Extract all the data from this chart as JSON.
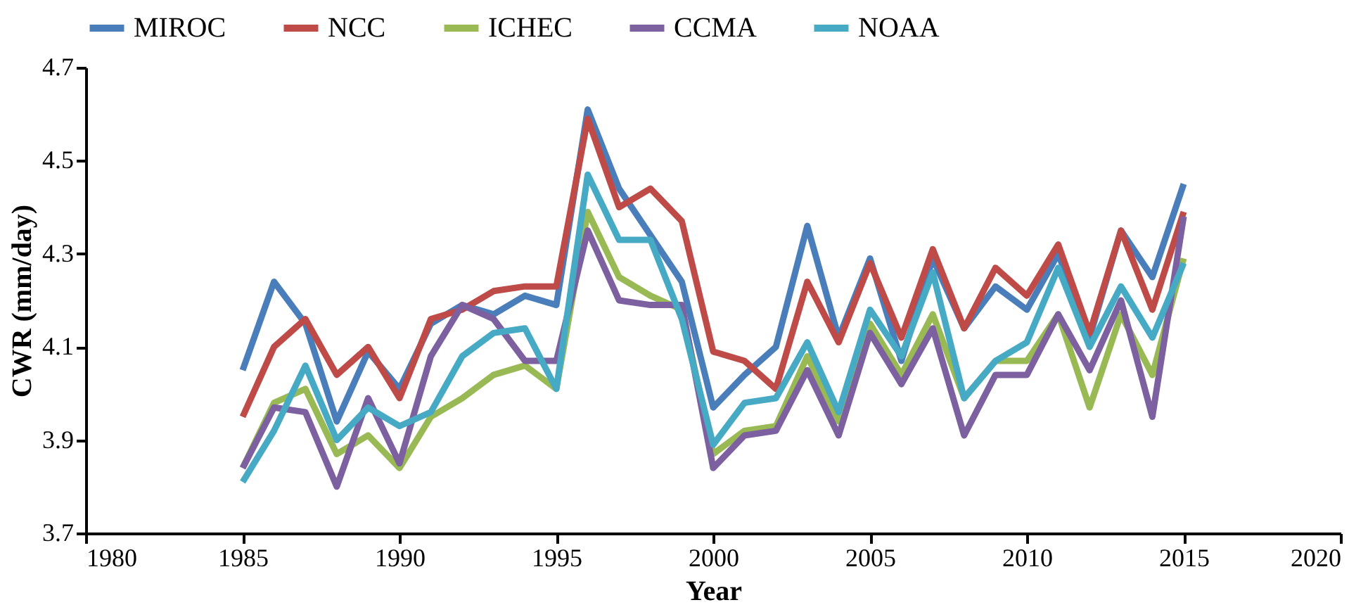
{
  "chart_data": {
    "type": "line",
    "xlabel": "Year",
    "ylabel": "CWR (mm/day)",
    "x": [
      1985,
      1986,
      1987,
      1988,
      1989,
      1990,
      1991,
      1992,
      1993,
      1994,
      1995,
      1996,
      1997,
      1998,
      1999,
      2000,
      2001,
      2002,
      2003,
      2004,
      2005,
      2006,
      2007,
      2008,
      2009,
      2010,
      2011,
      2012,
      2013,
      2014,
      2015
    ],
    "xlim": [
      1980,
      2020
    ],
    "xticks": [
      1980,
      1985,
      1990,
      1995,
      2000,
      2005,
      2010,
      2015,
      2020
    ],
    "ylim": [
      3.7,
      4.7
    ],
    "yticks": [
      3.7,
      3.9,
      4.1,
      4.3,
      4.5,
      4.7
    ],
    "grid": false,
    "legend": "top",
    "marker": "none",
    "line_style": "solid",
    "series": [
      {
        "name": "MIROC",
        "color": "#4a7ebb",
        "values": [
          4.05,
          4.24,
          4.15,
          3.94,
          4.09,
          4.01,
          4.15,
          4.19,
          4.17,
          4.21,
          4.19,
          4.61,
          4.44,
          4.34,
          4.24,
          3.97,
          4.04,
          4.1,
          4.36,
          4.12,
          4.29,
          4.07,
          4.29,
          4.14,
          4.23,
          4.18,
          4.3,
          4.12,
          4.35,
          4.25,
          4.45
        ]
      },
      {
        "name": "NCC",
        "color": "#be4b48",
        "values": [
          3.95,
          4.1,
          4.16,
          4.04,
          4.1,
          3.99,
          4.16,
          4.18,
          4.22,
          4.23,
          4.23,
          4.59,
          4.4,
          4.44,
          4.37,
          4.09,
          4.07,
          4.01,
          4.24,
          4.11,
          4.28,
          4.12,
          4.31,
          4.14,
          4.27,
          4.21,
          4.32,
          4.13,
          4.35,
          4.18,
          4.39
        ]
      },
      {
        "name": "ICHEC",
        "color": "#98b954",
        "values": [
          3.84,
          3.98,
          4.01,
          3.87,
          3.91,
          3.84,
          3.95,
          3.99,
          4.04,
          4.06,
          4.01,
          4.39,
          4.25,
          4.21,
          4.18,
          3.87,
          3.92,
          3.93,
          4.08,
          3.94,
          4.15,
          4.04,
          4.17,
          3.99,
          4.07,
          4.07,
          4.17,
          3.97,
          4.17,
          4.04,
          4.29
        ]
      },
      {
        "name": "CCMA",
        "color": "#7d60a0",
        "values": [
          3.84,
          3.97,
          3.96,
          3.8,
          3.99,
          3.85,
          4.08,
          4.19,
          4.16,
          4.07,
          4.07,
          4.35,
          4.2,
          4.19,
          4.19,
          3.84,
          3.91,
          3.92,
          4.05,
          3.91,
          4.13,
          4.02,
          4.14,
          3.91,
          4.04,
          4.04,
          4.17,
          4.05,
          4.2,
          3.95,
          4.38
        ]
      },
      {
        "name": "NOAA",
        "color": "#46aac5",
        "values": [
          3.81,
          3.92,
          4.06,
          3.9,
          3.97,
          3.93,
          3.96,
          4.08,
          4.13,
          4.14,
          4.01,
          4.47,
          4.33,
          4.33,
          4.16,
          3.89,
          3.98,
          3.99,
          4.11,
          3.96,
          4.18,
          4.08,
          4.26,
          3.99,
          4.07,
          4.11,
          4.27,
          4.1,
          4.23,
          4.12,
          4.28
        ]
      }
    ]
  }
}
